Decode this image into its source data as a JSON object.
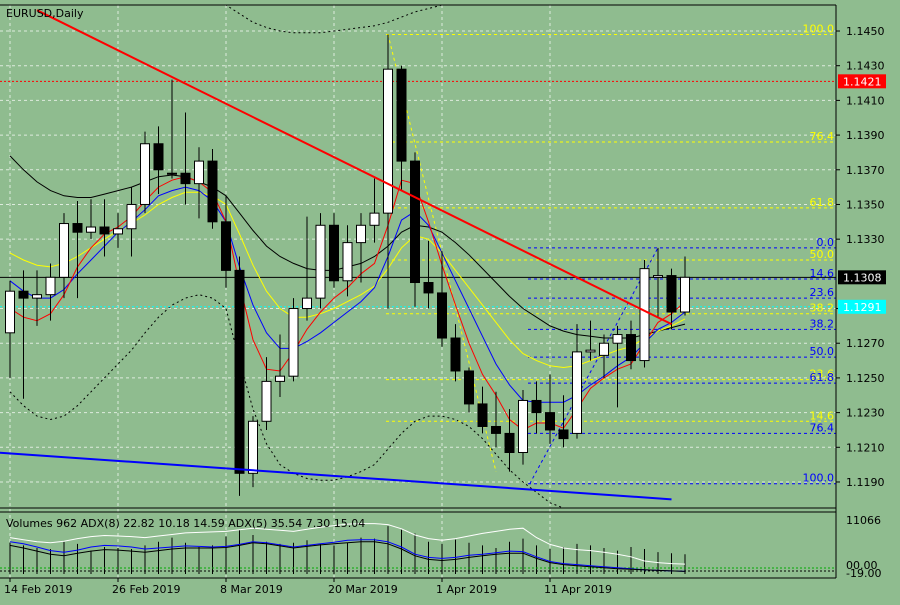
{
  "header": {
    "symbol_label": "EURUSD,Daily"
  },
  "indicator": {
    "label": "Volumes 962 ADX(8) 22.82 10.18 14.59 ADX(5) 35.54 7.30 15.04"
  },
  "colors": {
    "background": "#8fbc8f",
    "bull_candle": "#ffffff",
    "bear_candle": "#000000",
    "trendline_red": "#ff0000",
    "trendline_blue": "#0000ff",
    "fib_yellow": "#ffff00",
    "fib_blue": "#0000ff",
    "badge_red": "#ff0000",
    "badge_cyan": "#00ffff"
  },
  "chart_data": {
    "type": "candlestick",
    "title": "EURUSD,Daily",
    "ylim": [
      1.1175,
      1.1465
    ],
    "y_ticks": [
      "1.1450",
      "1.1430",
      "1.1410",
      "1.1390",
      "1.1370",
      "1.1350",
      "1.1330",
      "1.1290",
      "1.1270",
      "1.1250",
      "1.1230",
      "1.1210",
      "1.1190"
    ],
    "x_tick_labels": [
      {
        "label": "14 Feb 2019",
        "index": 0
      },
      {
        "label": "26 Feb 2019",
        "index": 8
      },
      {
        "label": "8 Mar 2019",
        "index": 16
      },
      {
        "label": "20 Mar 2019",
        "index": 24
      },
      {
        "label": "1 Apr 2019",
        "index": 32
      },
      {
        "label": "11 Apr 2019",
        "index": 40
      }
    ],
    "grid": true,
    "candles": [
      {
        "o": 1.1276,
        "h": 1.1306,
        "l": 1.125,
        "c": 1.13
      },
      {
        "o": 1.13,
        "h": 1.1312,
        "l": 1.1238,
        "c": 1.1296
      },
      {
        "o": 1.1296,
        "h": 1.1312,
        "l": 1.128,
        "c": 1.1298
      },
      {
        "o": 1.1298,
        "h": 1.1316,
        "l": 1.1283,
        "c": 1.1308
      },
      {
        "o": 1.1308,
        "h": 1.1345,
        "l": 1.1296,
        "c": 1.1339
      },
      {
        "o": 1.1339,
        "h": 1.1352,
        "l": 1.1296,
        "c": 1.1334
      },
      {
        "o": 1.1334,
        "h": 1.1353,
        "l": 1.133,
        "c": 1.1337
      },
      {
        "o": 1.1337,
        "h": 1.1353,
        "l": 1.132,
        "c": 1.1333
      },
      {
        "o": 1.1333,
        "h": 1.1345,
        "l": 1.1325,
        "c": 1.1336
      },
      {
        "o": 1.1336,
        "h": 1.136,
        "l": 1.132,
        "c": 1.135
      },
      {
        "o": 1.135,
        "h": 1.1392,
        "l": 1.1345,
        "c": 1.1385
      },
      {
        "o": 1.1385,
        "h": 1.1395,
        "l": 1.1356,
        "c": 1.137
      },
      {
        "o": 1.1368,
        "h": 1.1422,
        "l": 1.1365,
        "c": 1.1368
      },
      {
        "o": 1.1368,
        "h": 1.1403,
        "l": 1.135,
        "c": 1.1362
      },
      {
        "o": 1.1362,
        "h": 1.1383,
        "l": 1.1342,
        "c": 1.1375
      },
      {
        "o": 1.1375,
        "h": 1.1382,
        "l": 1.1336,
        "c": 1.134
      },
      {
        "o": 1.134,
        "h": 1.1355,
        "l": 1.1302,
        "c": 1.1312
      },
      {
        "o": 1.1312,
        "h": 1.132,
        "l": 1.1182,
        "c": 1.1195
      },
      {
        "o": 1.1195,
        "h": 1.1228,
        "l": 1.1187,
        "c": 1.1225
      },
      {
        "o": 1.1225,
        "h": 1.1262,
        "l": 1.122,
        "c": 1.1248
      },
      {
        "o": 1.1248,
        "h": 1.1275,
        "l": 1.1239,
        "c": 1.1251
      },
      {
        "o": 1.1251,
        "h": 1.1296,
        "l": 1.1248,
        "c": 1.129
      },
      {
        "o": 1.129,
        "h": 1.1343,
        "l": 1.1283,
        "c": 1.1296
      },
      {
        "o": 1.1296,
        "h": 1.1345,
        "l": 1.129,
        "c": 1.1338
      },
      {
        "o": 1.1338,
        "h": 1.1345,
        "l": 1.1302,
        "c": 1.1306
      },
      {
        "o": 1.1306,
        "h": 1.1338,
        "l": 1.1297,
        "c": 1.1328
      },
      {
        "o": 1.1328,
        "h": 1.1345,
        "l": 1.1305,
        "c": 1.1338
      },
      {
        "o": 1.1338,
        "h": 1.1365,
        "l": 1.1328,
        "c": 1.1345
      },
      {
        "o": 1.1345,
        "h": 1.1448,
        "l": 1.129,
        "c": 1.1428
      },
      {
        "o": 1.1428,
        "h": 1.143,
        "l": 1.1358,
        "c": 1.1375
      },
      {
        "o": 1.1375,
        "h": 1.138,
        "l": 1.1291,
        "c": 1.1305
      },
      {
        "o": 1.1305,
        "h": 1.1329,
        "l": 1.129,
        "c": 1.1299
      },
      {
        "o": 1.1299,
        "h": 1.1323,
        "l": 1.1268,
        "c": 1.1273
      },
      {
        "o": 1.1273,
        "h": 1.1281,
        "l": 1.1248,
        "c": 1.1254
      },
      {
        "o": 1.1254,
        "h": 1.1256,
        "l": 1.123,
        "c": 1.1235
      },
      {
        "o": 1.1235,
        "h": 1.1245,
        "l": 1.1218,
        "c": 1.1222
      },
      {
        "o": 1.1222,
        "h": 1.1242,
        "l": 1.121,
        "c": 1.1218
      },
      {
        "o": 1.1218,
        "h": 1.1232,
        "l": 1.1196,
        "c": 1.1207
      },
      {
        "o": 1.1207,
        "h": 1.1243,
        "l": 1.12,
        "c": 1.1237
      },
      {
        "o": 1.1237,
        "h": 1.1248,
        "l": 1.1218,
        "c": 1.123
      },
      {
        "o": 1.123,
        "h": 1.1252,
        "l": 1.1212,
        "c": 1.122
      },
      {
        "o": 1.122,
        "h": 1.124,
        "l": 1.121,
        "c": 1.1215
      },
      {
        "o": 1.1218,
        "h": 1.1281,
        "l": 1.1215,
        "c": 1.1265
      },
      {
        "o": 1.1265,
        "h": 1.1283,
        "l": 1.126,
        "c": 1.1266
      },
      {
        "o": 1.1263,
        "h": 1.1275,
        "l": 1.125,
        "c": 1.127
      },
      {
        "o": 1.127,
        "h": 1.128,
        "l": 1.1233,
        "c": 1.1275
      },
      {
        "o": 1.1275,
        "h": 1.1283,
        "l": 1.1255,
        "c": 1.126
      },
      {
        "o": 1.126,
        "h": 1.1318,
        "l": 1.1256,
        "c": 1.1313
      },
      {
        "o": 1.1308,
        "h": 1.1325,
        "l": 1.1285,
        "c": 1.1309
      },
      {
        "o": 1.1309,
        "h": 1.1313,
        "l": 1.1278,
        "c": 1.1288
      },
      {
        "o": 1.1288,
        "h": 1.132,
        "l": 1.1286,
        "c": 1.1308
      }
    ],
    "current_price": "1.1308",
    "badge_red_price": "1.1421",
    "badge_cyan_price": "1.1291",
    "red_resistance_level": 1.1421,
    "cyan_level": 1.1291,
    "fib_yellow": {
      "levels": [
        {
          "label": "100.0",
          "price": 1.1448
        },
        {
          "label": "76.4",
          "price": 1.1386
        },
        {
          "label": "61.8",
          "price": 1.1348
        },
        {
          "label": "50.0",
          "price": 1.1318
        },
        {
          "label": "38.2",
          "price": 1.1287
        },
        {
          "label": "23.6",
          "price": 1.1249
        },
        {
          "label": "14.6",
          "price": 1.1225
        }
      ]
    },
    "fib_blue": {
      "levels": [
        {
          "label": "0.0",
          "price": 1.1325
        },
        {
          "label": "14.6",
          "price": 1.1307
        },
        {
          "label": "23.6",
          "price": 1.1296
        },
        {
          "label": "38.2",
          "price": 1.1278
        },
        {
          "label": "50.0",
          "price": 1.1262
        },
        {
          "label": "61.8",
          "price": 1.1247
        },
        {
          "label": "76.4",
          "price": 1.1218
        },
        {
          "label": "100.0",
          "price": 1.1189
        }
      ]
    },
    "trendlines": [
      {
        "name": "red",
        "from": {
          "index": 2,
          "price": 1.1462
        },
        "to": {
          "index": 49,
          "price": 1.1281
        }
      },
      {
        "name": "blue",
        "from": {
          "index": -1,
          "price": 1.1207
        },
        "to": {
          "index": 49,
          "price": 1.118
        }
      }
    ],
    "ma_red": [
      1.129,
      1.1285,
      1.1283,
      1.1287,
      1.1298,
      1.1314,
      1.1325,
      1.1333,
      1.1337,
      1.1343,
      1.1352,
      1.136,
      1.1364,
      1.1366,
      1.1363,
      1.1357,
      1.134,
      1.1304,
      1.1272,
      1.1255,
      1.1254,
      1.1265,
      1.1278,
      1.1288,
      1.1296,
      1.1302,
      1.131,
      1.1316,
      1.1338,
      1.1364,
      1.1362,
      1.134,
      1.1315,
      1.1292,
      1.127,
      1.1252,
      1.124,
      1.1226,
      1.122,
      1.1224,
      1.1224,
      1.1221,
      1.1232,
      1.1244,
      1.125,
      1.1255,
      1.1258,
      1.127,
      1.1282,
      1.1287,
      1.1294
    ],
    "ma_blue": [
      1.1306,
      1.13,
      1.1296,
      1.1296,
      1.1301,
      1.131,
      1.1318,
      1.1326,
      1.1334,
      1.134,
      1.1347,
      1.1355,
      1.1358,
      1.136,
      1.1358,
      1.1352,
      1.134,
      1.1314,
      1.1292,
      1.1276,
      1.1267,
      1.1267,
      1.1271,
      1.1276,
      1.1282,
      1.1288,
      1.1294,
      1.1302,
      1.132,
      1.1341,
      1.1346,
      1.1338,
      1.1322,
      1.1306,
      1.129,
      1.1274,
      1.1258,
      1.1246,
      1.1237,
      1.1236,
      1.1236,
      1.1236,
      1.124,
      1.1246,
      1.1251,
      1.1257,
      1.1262,
      1.127,
      1.1278,
      1.1282,
      1.1288
    ],
    "ma_yellow": [
      1.1322,
      1.1318,
      1.1315,
      1.1314,
      1.1316,
      1.132,
      1.1325,
      1.133,
      1.1335,
      1.1339,
      1.1344,
      1.135,
      1.1354,
      1.1357,
      1.1357,
      1.1355,
      1.135,
      1.1333,
      1.1315,
      1.13,
      1.129,
      1.1285,
      1.1285,
      1.1287,
      1.129,
      1.1294,
      1.1298,
      1.1303,
      1.1313,
      1.1325,
      1.1332,
      1.133,
      1.1322,
      1.1312,
      1.1302,
      1.1292,
      1.1282,
      1.1272,
      1.1264,
      1.126,
      1.1257,
      1.1256,
      1.1257,
      1.126,
      1.1263,
      1.1266,
      1.1268,
      1.1273,
      1.1277,
      1.128,
      1.1284
    ],
    "ma_black": [
      1.1378,
      1.137,
      1.1363,
      1.1358,
      1.1355,
      1.1354,
      1.1354,
      1.1356,
      1.1358,
      1.136,
      1.1363,
      1.1366,
      1.1367,
      1.1366,
      1.1363,
      1.136,
      1.1355,
      1.1345,
      1.1335,
      1.1326,
      1.132,
      1.1316,
      1.1313,
      1.1312,
      1.1312,
      1.1314,
      1.1316,
      1.132,
      1.1326,
      1.1334,
      1.1338,
      1.1337,
      1.1334,
      1.1328,
      1.1321,
      1.1313,
      1.1305,
      1.1297,
      1.129,
      1.1285,
      1.128,
      1.1277,
      1.1275,
      1.1274,
      1.1273,
      1.1273,
      1.1273,
      1.1275,
      1.1277,
      1.1279,
      1.1281
    ],
    "bb_upper": [
      1.1465,
      1.1465,
      1.1465,
      1.1465,
      1.1465,
      1.1465,
      1.1465,
      1.1465,
      1.1465,
      1.1465,
      1.1465,
      1.1465,
      1.1465,
      1.1465,
      1.1465,
      1.1465,
      1.1465,
      1.146,
      1.1455,
      1.1452,
      1.145,
      1.1449,
      1.1449,
      1.1449,
      1.145,
      1.1451,
      1.1452,
      1.1453,
      1.1455,
      1.1458,
      1.1461,
      1.1463,
      1.1465,
      1.1465,
      1.1465,
      1.1465,
      1.1465,
      1.1465,
      1.1465,
      1.1465,
      1.1465,
      1.1465,
      1.1465,
      1.1465,
      1.1465,
      1.1465,
      1.1465,
      1.1465,
      1.1465,
      1.1465,
      1.1465
    ],
    "bb_lower": [
      1.1242,
      1.1234,
      1.1228,
      1.1226,
      1.1228,
      1.1234,
      1.1242,
      1.125,
      1.1258,
      1.1266,
      1.1276,
      1.1285,
      1.1292,
      1.1296,
      1.1298,
      1.1296,
      1.129,
      1.126,
      1.1232,
      1.1212,
      1.12,
      1.1195,
      1.1192,
      1.1191,
      1.1191,
      1.1193,
      1.1196,
      1.12,
      1.1209,
      1.1218,
      1.1225,
      1.1228,
      1.1228,
      1.1226,
      1.1222,
      1.1215,
      1.1206,
      1.1197,
      1.119,
      1.1184,
      1.1178,
      1.1175,
      1.1175,
      1.1175,
      1.1175,
      1.1175,
      1.1175,
      1.1175,
      1.1175,
      1.1175,
      1.1175
    ],
    "indicator_ticks": [
      "11066",
      "00.00",
      "-19.00"
    ],
    "volume_series": [
      {
        "name": "white",
        "values": [
          0.7,
          0.66,
          0.62,
          0.6,
          0.63,
          0.68,
          0.72,
          0.74,
          0.73,
          0.72,
          0.7,
          0.73,
          0.76,
          0.79,
          0.8,
          0.81,
          0.82,
          0.85,
          0.88,
          0.86,
          0.84,
          0.82,
          0.86,
          0.9,
          0.93,
          0.96,
          0.97,
          0.97,
          0.95,
          0.87,
          0.75,
          0.68,
          0.65,
          0.68,
          0.73,
          0.78,
          0.82,
          0.86,
          0.88,
          0.7,
          0.57,
          0.5,
          0.47,
          0.45,
          0.42,
          0.38,
          0.33,
          0.25,
          0.22,
          0.2,
          0.19
        ]
      },
      {
        "name": "blue",
        "values": [
          0.62,
          0.58,
          0.52,
          0.45,
          0.42,
          0.46,
          0.52,
          0.55,
          0.54,
          0.52,
          0.48,
          0.5,
          0.52,
          0.54,
          0.53,
          0.52,
          0.53,
          0.57,
          0.62,
          0.6,
          0.56,
          0.52,
          0.55,
          0.58,
          0.61,
          0.65,
          0.66,
          0.66,
          0.62,
          0.52,
          0.38,
          0.32,
          0.3,
          0.32,
          0.36,
          0.38,
          0.41,
          0.44,
          0.43,
          0.33,
          0.24,
          0.2,
          0.18,
          0.16,
          0.14,
          0.12,
          0.1,
          0.08,
          0.07,
          0.06,
          0.05
        ]
      },
      {
        "name": "black",
        "values": [
          0.55,
          0.5,
          0.44,
          0.38,
          0.35,
          0.4,
          0.44,
          0.47,
          0.46,
          0.44,
          0.42,
          0.45,
          0.48,
          0.5,
          0.5,
          0.5,
          0.51,
          0.55,
          0.6,
          0.58,
          0.54,
          0.5,
          0.53,
          0.56,
          0.58,
          0.6,
          0.62,
          0.62,
          0.58,
          0.48,
          0.35,
          0.28,
          0.26,
          0.28,
          0.32,
          0.35,
          0.38,
          0.4,
          0.4,
          0.3,
          0.22,
          0.18,
          0.16,
          0.14,
          0.12,
          0.1,
          0.09,
          0.08,
          0.07,
          0.06,
          0.05
        ]
      }
    ],
    "volume_bars": [
      0.6,
      0.55,
      0.5,
      0.48,
      0.62,
      0.58,
      0.45,
      0.52,
      0.5,
      0.48,
      0.55,
      0.62,
      0.7,
      0.6,
      0.52,
      0.55,
      0.72,
      0.85,
      0.75,
      0.62,
      0.58,
      0.6,
      0.65,
      0.58,
      0.55,
      0.6,
      0.7,
      0.68,
      0.92,
      0.85,
      0.78,
      0.62,
      0.58,
      0.66,
      0.6,
      0.55,
      0.5,
      0.62,
      0.68,
      0.55,
      0.48,
      0.52,
      0.58,
      0.55,
      0.5,
      0.45,
      0.52,
      0.48,
      0.42,
      0.4,
      0.38
    ]
  }
}
